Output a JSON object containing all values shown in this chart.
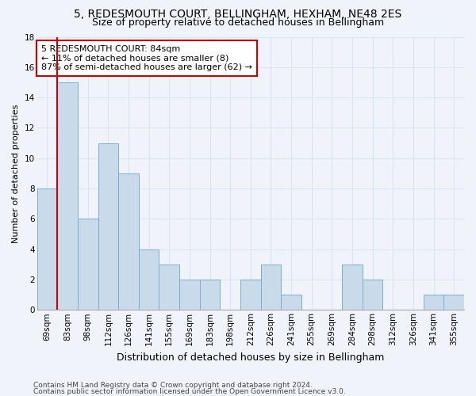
{
  "title1": "5, REDESMOUTH COURT, BELLINGHAM, HEXHAM, NE48 2ES",
  "title2": "Size of property relative to detached houses in Bellingham",
  "xlabel": "Distribution of detached houses by size in Bellingham",
  "ylabel": "Number of detached properties",
  "categories": [
    "69sqm",
    "83sqm",
    "98sqm",
    "112sqm",
    "126sqm",
    "141sqm",
    "155sqm",
    "169sqm",
    "183sqm",
    "198sqm",
    "212sqm",
    "226sqm",
    "241sqm",
    "255sqm",
    "269sqm",
    "284sqm",
    "298sqm",
    "312sqm",
    "326sqm",
    "341sqm",
    "355sqm"
  ],
  "values": [
    8,
    15,
    6,
    11,
    9,
    4,
    3,
    2,
    2,
    0,
    2,
    3,
    1,
    0,
    0,
    3,
    2,
    0,
    0,
    1,
    1
  ],
  "bar_color": "#c9daea",
  "bar_edge_color": "#7badd4",
  "vline_color": "#cc0000",
  "vline_pos": 1,
  "ylim": [
    0,
    18
  ],
  "yticks": [
    0,
    2,
    4,
    6,
    8,
    10,
    12,
    14,
    16,
    18
  ],
  "annotation_title": "5 REDESMOUTH COURT: 84sqm",
  "annotation_line1": "← 11% of detached houses are smaller (8)",
  "annotation_line2": "87% of semi-detached houses are larger (62) →",
  "annotation_box_facecolor": "#ffffff",
  "annotation_box_edgecolor": "#cc0000",
  "footer1": "Contains HM Land Registry data © Crown copyright and database right 2024.",
  "footer2": "Contains public sector information licensed under the Open Government Licence v3.0.",
  "background_color": "#f0f4fa",
  "grid_color": "#d8e4f0",
  "title_fontsize": 10,
  "subtitle_fontsize": 9,
  "ylabel_fontsize": 8,
  "xlabel_fontsize": 9,
  "tick_fontsize": 7.5,
  "ann_fontsize": 8,
  "footer_fontsize": 6.5
}
